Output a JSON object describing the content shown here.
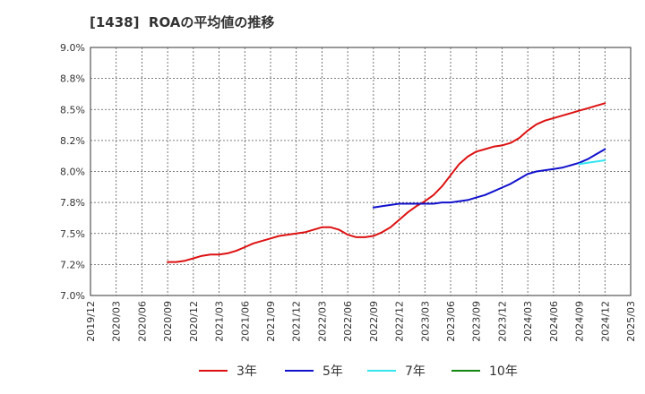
{
  "chart_data": {
    "type": "line",
    "title": "[1438]  ROAの平均値の推移",
    "x_ticks": [
      "2019/12",
      "2020/03",
      "2020/06",
      "2020/09",
      "2020/12",
      "2021/03",
      "2021/06",
      "2021/09",
      "2021/12",
      "2022/03",
      "2022/06",
      "2022/09",
      "2022/12",
      "2023/03",
      "2023/06",
      "2023/09",
      "2023/12",
      "2024/03",
      "2024/06",
      "2024/09",
      "2024/12",
      "2025/03"
    ],
    "y_ticks": [
      "9.0%",
      "8.8%",
      "8.5%",
      "8.2%",
      "8.0%",
      "7.8%",
      "7.5%",
      "7.2%",
      "7.0%"
    ],
    "ylim": [
      7.0,
      9.0
    ],
    "grid": true,
    "legend_position": "bottom",
    "series": [
      {
        "name": "3年",
        "color": "#dd1111",
        "points": [
          [
            "2020/09",
            7.27
          ],
          [
            "2020/10",
            7.27
          ],
          [
            "2020/11",
            7.28
          ],
          [
            "2020/12",
            7.3
          ],
          [
            "2021/01",
            7.32
          ],
          [
            "2021/02",
            7.33
          ],
          [
            "2021/03",
            7.33
          ],
          [
            "2021/04",
            7.34
          ],
          [
            "2021/05",
            7.36
          ],
          [
            "2021/06",
            7.39
          ],
          [
            "2021/07",
            7.42
          ],
          [
            "2021/08",
            7.44
          ],
          [
            "2021/09",
            7.46
          ],
          [
            "2021/10",
            7.48
          ],
          [
            "2021/11",
            7.49
          ],
          [
            "2021/12",
            7.5
          ],
          [
            "2022/01",
            7.51
          ],
          [
            "2022/02",
            7.53
          ],
          [
            "2022/03",
            7.55
          ],
          [
            "2022/04",
            7.55
          ],
          [
            "2022/05",
            7.53
          ],
          [
            "2022/06",
            7.49
          ],
          [
            "2022/07",
            7.47
          ],
          [
            "2022/08",
            7.47
          ],
          [
            "2022/09",
            7.48
          ],
          [
            "2022/10",
            7.51
          ],
          [
            "2022/11",
            7.55
          ],
          [
            "2022/12",
            7.61
          ],
          [
            "2023/01",
            7.67
          ],
          [
            "2023/02",
            7.72
          ],
          [
            "2023/03",
            7.76
          ],
          [
            "2023/04",
            7.81
          ],
          [
            "2023/05",
            7.88
          ],
          [
            "2023/06",
            7.97
          ],
          [
            "2023/07",
            8.06
          ],
          [
            "2023/08",
            8.12
          ],
          [
            "2023/09",
            8.16
          ],
          [
            "2023/10",
            8.18
          ],
          [
            "2023/11",
            8.2
          ],
          [
            "2023/12",
            8.21
          ],
          [
            "2024/01",
            8.23
          ],
          [
            "2024/02",
            8.27
          ],
          [
            "2024/03",
            8.33
          ],
          [
            "2024/04",
            8.38
          ],
          [
            "2024/05",
            8.41
          ],
          [
            "2024/06",
            8.43
          ],
          [
            "2024/07",
            8.45
          ],
          [
            "2024/08",
            8.47
          ],
          [
            "2024/09",
            8.49
          ],
          [
            "2024/10",
            8.51
          ],
          [
            "2024/11",
            8.53
          ],
          [
            "2024/12",
            8.55
          ]
        ]
      },
      {
        "name": "5年",
        "color": "#1111cc",
        "points": [
          [
            "2022/09",
            7.71
          ],
          [
            "2022/10",
            7.72
          ],
          [
            "2022/11",
            7.73
          ],
          [
            "2022/12",
            7.74
          ],
          [
            "2023/01",
            7.74
          ],
          [
            "2023/02",
            7.74
          ],
          [
            "2023/03",
            7.74
          ],
          [
            "2023/04",
            7.74
          ],
          [
            "2023/05",
            7.75
          ],
          [
            "2023/06",
            7.75
          ],
          [
            "2023/07",
            7.76
          ],
          [
            "2023/08",
            7.77
          ],
          [
            "2023/09",
            7.79
          ],
          [
            "2023/10",
            7.81
          ],
          [
            "2023/11",
            7.84
          ],
          [
            "2023/12",
            7.87
          ],
          [
            "2024/01",
            7.9
          ],
          [
            "2024/02",
            7.94
          ],
          [
            "2024/03",
            7.98
          ],
          [
            "2024/04",
            8.0
          ],
          [
            "2024/05",
            8.01
          ],
          [
            "2024/06",
            8.02
          ],
          [
            "2024/07",
            8.03
          ],
          [
            "2024/08",
            8.05
          ],
          [
            "2024/09",
            8.07
          ],
          [
            "2024/10",
            8.1
          ],
          [
            "2024/11",
            8.14
          ],
          [
            "2024/12",
            8.18
          ]
        ]
      },
      {
        "name": "7年",
        "color": "#33e6f0",
        "points": [
          [
            "2024/09",
            8.06
          ],
          [
            "2024/10",
            8.07
          ],
          [
            "2024/11",
            8.08
          ],
          [
            "2024/12",
            8.09
          ]
        ]
      },
      {
        "name": "10年",
        "color": "#118811",
        "points": []
      }
    ]
  }
}
